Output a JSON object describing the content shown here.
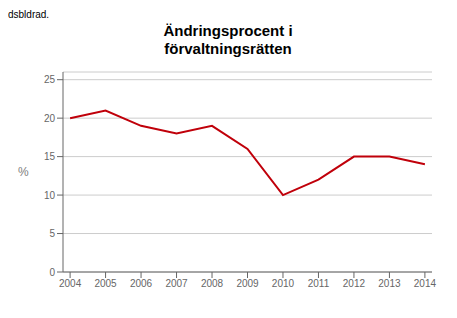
{
  "chart_data": {
    "type": "line",
    "title": "Ändringsprocent i\nförvaltningsrätten",
    "annotations": [
      "dsbldrad."
    ],
    "ylabel": "%",
    "x": [
      2004,
      2005,
      2006,
      2007,
      2008,
      2009,
      2010,
      2011,
      2012,
      2013,
      2014
    ],
    "values": [
      20,
      21,
      19,
      18,
      19,
      16,
      10,
      12,
      15,
      15,
      14
    ],
    "color": "#c0000a",
    "xlim": [
      2003.8,
      2014.2
    ],
    "xticks": [
      2004,
      2005,
      2006,
      2007,
      2008,
      2009,
      2010,
      2011,
      2012,
      2013,
      2014
    ],
    "ylim": [
      0,
      26
    ],
    "yticks": [
      0,
      5,
      10,
      15,
      20,
      25
    ],
    "grid": true
  }
}
